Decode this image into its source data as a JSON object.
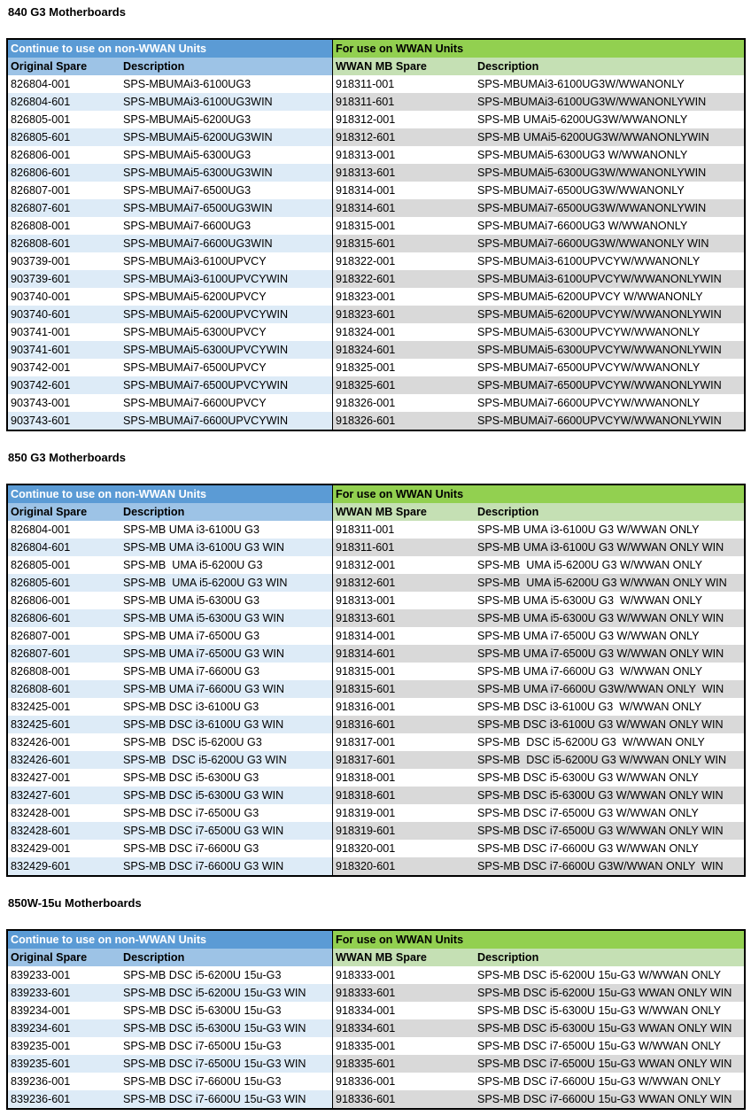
{
  "colors": {
    "left_group": "#5b9bd5",
    "right_group": "#92d050",
    "left_header": "#9dc3e6",
    "right_header": "#c5e0b4",
    "left_stripe": "#ddebf7",
    "right_stripe": "#d9d9d9"
  },
  "sections": [
    {
      "title": "840 G3 Motherboards",
      "group_left": "Continue to use on non-WWAN Units",
      "group_right": "For use on WWAN Units",
      "headers": [
        "Original Spare",
        "Description",
        "WWAN MB Spare",
        "Description"
      ],
      "rows": [
        [
          "826804-001",
          "SPS-MBUMAi3-6100UG3",
          "918311-001",
          "SPS-MBUMAi3-6100UG3W/WWANONLY"
        ],
        [
          "826804-601",
          "SPS-MBUMAi3-6100UG3WIN",
          "918311-601",
          "SPS-MBUMAi3-6100UG3W/WWANONLYWIN"
        ],
        [
          "826805-001",
          "SPS-MBUMAi5-6200UG3",
          "918312-001",
          "SPS-MB UMAi5-6200UG3W/WWANONLY"
        ],
        [
          "826805-601",
          "SPS-MBUMAi5-6200UG3WIN",
          "918312-601",
          "SPS-MB UMAi5-6200UG3W/WWANONLYWIN"
        ],
        [
          "826806-001",
          "SPS-MBUMAi5-6300UG3",
          "918313-001",
          "SPS-MBUMAi5-6300UG3 W/WWANONLY"
        ],
        [
          "826806-601",
          "SPS-MBUMAi5-6300UG3WIN",
          "918313-601",
          "SPS-MBUMAi5-6300UG3W/WWANONLYWIN"
        ],
        [
          "826807-001",
          "SPS-MBUMAi7-6500UG3",
          "918314-001",
          "SPS-MBUMAi7-6500UG3W/WWANONLY"
        ],
        [
          "826807-601",
          "SPS-MBUMAi7-6500UG3WIN",
          "918314-601",
          "SPS-MBUMAi7-6500UG3W/WWANONLYWIN"
        ],
        [
          "826808-001",
          "SPS-MBUMAi7-6600UG3",
          "918315-001",
          "SPS-MBUMAi7-6600UG3 W/WWANONLY"
        ],
        [
          "826808-601",
          "SPS-MBUMAi7-6600UG3WIN",
          "918315-601",
          "SPS-MBUMAi7-6600UG3W/WWANONLY WIN"
        ],
        [
          "903739-001",
          "SPS-MBUMAi3-6100UPVCY",
          "918322-001",
          "SPS-MBUMAi3-6100UPVCYW/WWANONLY"
        ],
        [
          "903739-601",
          "SPS-MBUMAi3-6100UPVCYWIN",
          "918322-601",
          "SPS-MBUMAi3-6100UPVCYW/WWANONLYWIN"
        ],
        [
          "903740-001",
          "SPS-MBUMAi5-6200UPVCY",
          "918323-001",
          "SPS-MBUMAi5-6200UPVCY W/WWANONLY"
        ],
        [
          "903740-601",
          "SPS-MBUMAi5-6200UPVCYWIN",
          "918323-601",
          "SPS-MBUMAi5-6200UPVCYW/WWANONLYWIN"
        ],
        [
          "903741-001",
          "SPS-MBUMAi5-6300UPVCY",
          "918324-001",
          "SPS-MBUMAi5-6300UPVCYW/WWANONLY"
        ],
        [
          "903741-601",
          "SPS-MBUMAi5-6300UPVCYWIN",
          "918324-601",
          "SPS-MBUMAi5-6300UPVCYW/WWANONLYWIN"
        ],
        [
          "903742-001",
          "SPS-MBUMAi7-6500UPVCY",
          "918325-001",
          "SPS-MBUMAi7-6500UPVCYW/WWANONLY"
        ],
        [
          "903742-601",
          "SPS-MBUMAi7-6500UPVCYWIN",
          "918325-601",
          "SPS-MBUMAi7-6500UPVCYW/WWANONLYWIN"
        ],
        [
          "903743-001",
          "SPS-MBUMAi7-6600UPVCY",
          "918326-001",
          "SPS-MBUMAi7-6600UPVCYW/WWANONLY"
        ],
        [
          "903743-601",
          "SPS-MBUMAi7-6600UPVCYWIN",
          "918326-601",
          "SPS-MBUMAi7-6600UPVCYW/WWANONLYWIN"
        ]
      ]
    },
    {
      "title": "850 G3 Motherboards",
      "group_left": "Continue to use on non-WWAN Units",
      "group_right": "For use on WWAN Units",
      "headers": [
        "Original Spare",
        "Description",
        "WWAN MB Spare",
        "Description"
      ],
      "rows": [
        [
          "826804-001",
          "SPS-MB UMA i3-6100U G3",
          "918311-001",
          "SPS-MB UMA i3-6100U G3 W/WWAN ONLY"
        ],
        [
          "826804-601",
          "SPS-MB UMA i3-6100U G3 WIN",
          "918311-601",
          "SPS-MB UMA i3-6100U G3 W/WWAN ONLY WIN"
        ],
        [
          "826805-001",
          "SPS-MB  UMA i5-6200U G3",
          "918312-001",
          "SPS-MB  UMA i5-6200U G3 W/WWAN ONLY"
        ],
        [
          "826805-601",
          "SPS-MB  UMA i5-6200U G3 WIN",
          "918312-601",
          "SPS-MB  UMA i5-6200U G3 W/WWAN ONLY WIN"
        ],
        [
          "826806-001",
          "SPS-MB UMA i5-6300U G3",
          "918313-001",
          "SPS-MB UMA i5-6300U G3  W/WWAN ONLY"
        ],
        [
          "826806-601",
          "SPS-MB UMA i5-6300U G3 WIN",
          "918313-601",
          "SPS-MB UMA i5-6300U G3 W/WWAN ONLY WIN"
        ],
        [
          "826807-001",
          "SPS-MB UMA i7-6500U G3",
          "918314-001",
          "SPS-MB UMA i7-6500U G3 W/WWAN ONLY"
        ],
        [
          "826807-601",
          "SPS-MB UMA i7-6500U G3 WIN",
          "918314-601",
          "SPS-MB UMA i7-6500U G3 W/WWAN ONLY WIN"
        ],
        [
          "826808-001",
          "SPS-MB UMA i7-6600U G3",
          "918315-001",
          "SPS-MB UMA i7-6600U G3  W/WWAN ONLY"
        ],
        [
          "826808-601",
          "SPS-MB UMA i7-6600U G3 WIN",
          "918315-601",
          "SPS-MB UMA i7-6600U G3W/WWAN ONLY  WIN"
        ],
        [
          "832425-001",
          "SPS-MB DSC i3-6100U G3",
          "918316-001",
          "SPS-MB DSC i3-6100U G3  W/WWAN ONLY"
        ],
        [
          "832425-601",
          "SPS-MB DSC i3-6100U G3 WIN",
          "918316-601",
          "SPS-MB DSC i3-6100U G3 W/WWAN ONLY WIN"
        ],
        [
          "832426-001",
          "SPS-MB  DSC i5-6200U G3",
          "918317-001",
          "SPS-MB  DSC i5-6200U G3  W/WWAN ONLY"
        ],
        [
          "832426-601",
          "SPS-MB  DSC i5-6200U G3 WIN",
          "918317-601",
          "SPS-MB  DSC i5-6200U G3 W/WWAN ONLY WIN"
        ],
        [
          "832427-001",
          "SPS-MB DSC i5-6300U G3",
          "918318-001",
          "SPS-MB DSC i5-6300U G3 W/WWAN ONLY"
        ],
        [
          "832427-601",
          "SPS-MB DSC i5-6300U G3 WIN",
          "918318-601",
          "SPS-MB DSC i5-6300U G3 W/WWAN ONLY WIN"
        ],
        [
          "832428-001",
          "SPS-MB DSC i7-6500U G3",
          "918319-001",
          "SPS-MB DSC i7-6500U G3 W/WWAN ONLY"
        ],
        [
          "832428-601",
          "SPS-MB DSC i7-6500U G3 WIN",
          "918319-601",
          "SPS-MB DSC i7-6500U G3 W/WWAN ONLY WIN"
        ],
        [
          "832429-001",
          "SPS-MB DSC i7-6600U G3",
          "918320-001",
          "SPS-MB DSC i7-6600U G3 W/WWAN ONLY"
        ],
        [
          "832429-601",
          "SPS-MB DSC i7-6600U G3 WIN",
          "918320-601",
          "SPS-MB DSC i7-6600U G3W/WWAN ONLY  WIN"
        ]
      ]
    },
    {
      "title": "850W-15u Motherboards",
      "group_left": "Continue to use on non-WWAN Units",
      "group_right": "For use on WWAN Units",
      "headers": [
        "Original Spare",
        "Description",
        "WWAN MB Spare",
        "Description"
      ],
      "rows": [
        [
          "839233-001",
          "SPS-MB DSC i5-6200U 15u-G3",
          "918333-001",
          "SPS-MB DSC i5-6200U 15u-G3 W/WWAN ONLY"
        ],
        [
          "839233-601",
          "SPS-MB DSC i5-6200U 15u-G3 WIN",
          "918333-601",
          "SPS-MB DSC i5-6200U 15u-G3 WWAN ONLY WIN"
        ],
        [
          "839234-001",
          "SPS-MB DSC i5-6300U 15u-G3",
          "918334-001",
          "SPS-MB DSC i5-6300U 15u-G3 W/WWAN ONLY"
        ],
        [
          "839234-601",
          "SPS-MB DSC i5-6300U 15u-G3 WIN",
          "918334-601",
          "SPS-MB DSC i5-6300U 15u-G3 WWAN ONLY WIN"
        ],
        [
          "839235-001",
          "SPS-MB DSC i7-6500U 15u-G3",
          "918335-001",
          "SPS-MB DSC i7-6500U 15u-G3 W/WWAN ONLY"
        ],
        [
          "839235-601",
          "SPS-MB DSC i7-6500U 15u-G3 WIN",
          "918335-601",
          "SPS-MB DSC i7-6500U 15u-G3 WWAN ONLY WIN"
        ],
        [
          "839236-001",
          "SPS-MB DSC i7-6600U 15u-G3",
          "918336-001",
          "SPS-MB DSC i7-6600U 15u-G3 W/WWAN ONLY"
        ],
        [
          "839236-601",
          "SPS-MB DSC i7-6600U 15u-G3 WIN",
          "918336-601",
          "SPS-MB DSC i7-6600U 15u-G3 WWAN ONLY WIN"
        ]
      ]
    }
  ]
}
